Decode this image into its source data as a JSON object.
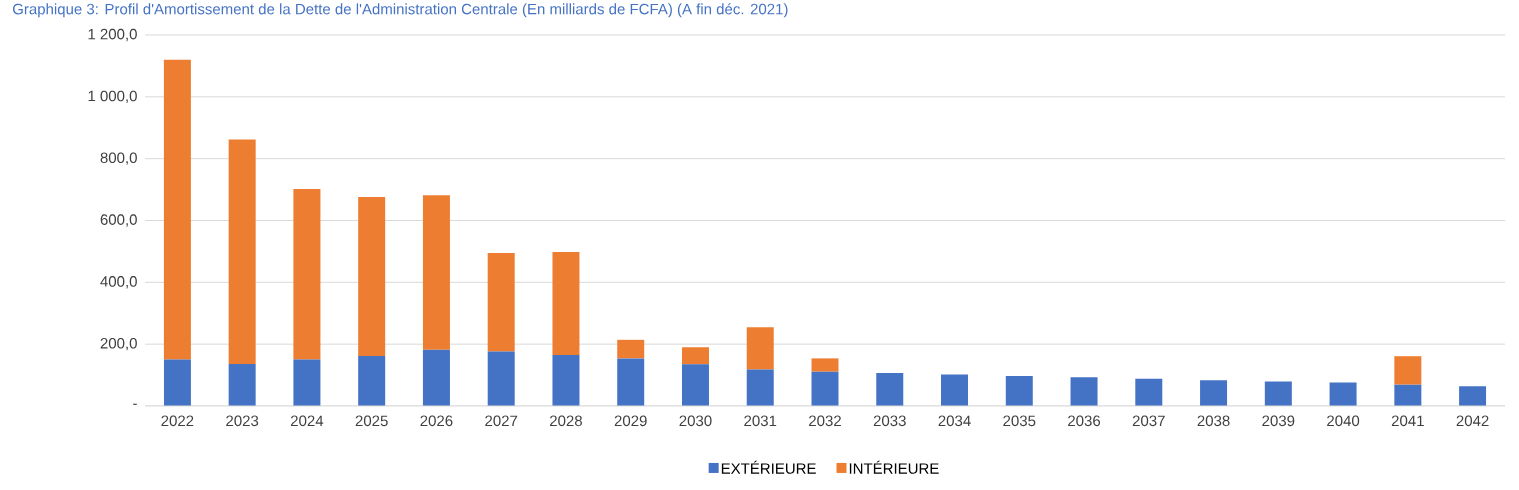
{
  "chart_data": {
    "type": "bar",
    "title": "Graphique 3: Profil d'Amortissement de la Dette de l'Administration Centrale (En milliards de FCFA) (A fin déc. 2021)",
    "categories": [
      "2022",
      "2023",
      "2024",
      "2025",
      "2026",
      "2027",
      "2028",
      "2029",
      "2030",
      "2031",
      "2032",
      "2033",
      "2034",
      "2035",
      "2036",
      "2037",
      "2038",
      "2039",
      "2040",
      "2041",
      "2042"
    ],
    "stacked": true,
    "series": [
      {
        "name": "EXTÉRIEURE",
        "color": "#4472c4",
        "values": [
          150,
          136,
          150,
          162,
          182,
          176,
          165,
          154,
          135,
          118,
          111,
          107,
          102,
          97,
          93,
          88,
          83,
          79,
          76,
          69,
          64
        ]
      },
      {
        "name": "INTÉRIEURE",
        "color": "#ed7d31",
        "values": [
          970,
          726,
          552,
          514,
          500,
          319,
          333,
          60,
          55,
          137,
          43,
          0,
          0,
          0,
          0,
          0,
          0,
          0,
          0,
          92,
          0
        ]
      }
    ],
    "ylim": [
      0,
      1200
    ],
    "yticks": [
      {
        "value": 0,
        "label": "-"
      },
      {
        "value": 200,
        "label": "200,0"
      },
      {
        "value": 400,
        "label": "400,0"
      },
      {
        "value": 600,
        "label": "600,0"
      },
      {
        "value": 800,
        "label": "800,0"
      },
      {
        "value": 1000,
        "label": "1 000,0"
      },
      {
        "value": 1200,
        "label": "1 200,0"
      }
    ],
    "grid": "y",
    "legend": "bottom"
  }
}
